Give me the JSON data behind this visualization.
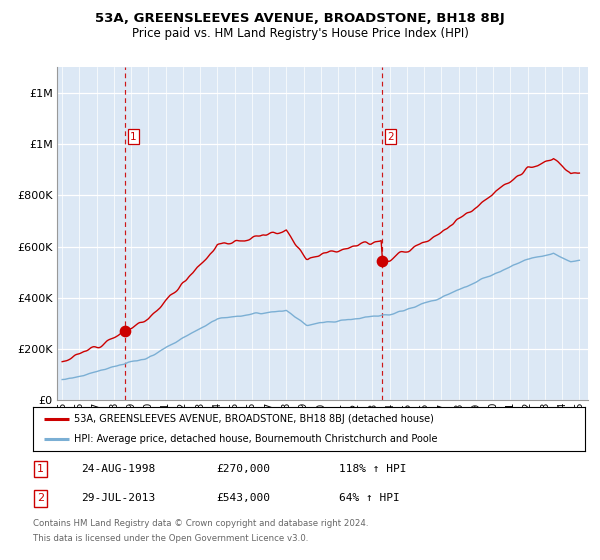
{
  "title": "53A, GREENSLEEVES AVENUE, BROADSTONE, BH18 8BJ",
  "subtitle": "Price paid vs. HM Land Registry's House Price Index (HPI)",
  "legend_line1": "53A, GREENSLEEVES AVENUE, BROADSTONE, BH18 8BJ (detached house)",
  "legend_line2": "HPI: Average price, detached house, Bournemouth Christchurch and Poole",
  "sale1_label": "1",
  "sale1_date_str": "24-AUG-1998",
  "sale1_price_str": "£270,000",
  "sale1_pct_str": "118% ↑ HPI",
  "sale2_label": "2",
  "sale2_date_str": "29-JUL-2013",
  "sale2_price_str": "£543,000",
  "sale2_pct_str": "64% ↑ HPI",
  "footnote_line1": "Contains HM Land Registry data © Crown copyright and database right 2024.",
  "footnote_line2": "This data is licensed under the Open Government Licence v3.0.",
  "red_color": "#CC0000",
  "blue_color": "#7BAFD4",
  "bg_color": "#DCE8F5",
  "sale1_year": 1998.65,
  "sale2_year": 2013.57,
  "sale1_price": 270000,
  "sale2_price": 543000,
  "xmin": 1994.7,
  "xmax": 2025.5,
  "ymin": 0,
  "ymax": 1300000,
  "yticks": [
    0,
    200000,
    400000,
    600000,
    800000,
    1000000,
    1200000
  ],
  "xtick_start": 1995,
  "xtick_end": 2025,
  "noise_seed": 12
}
